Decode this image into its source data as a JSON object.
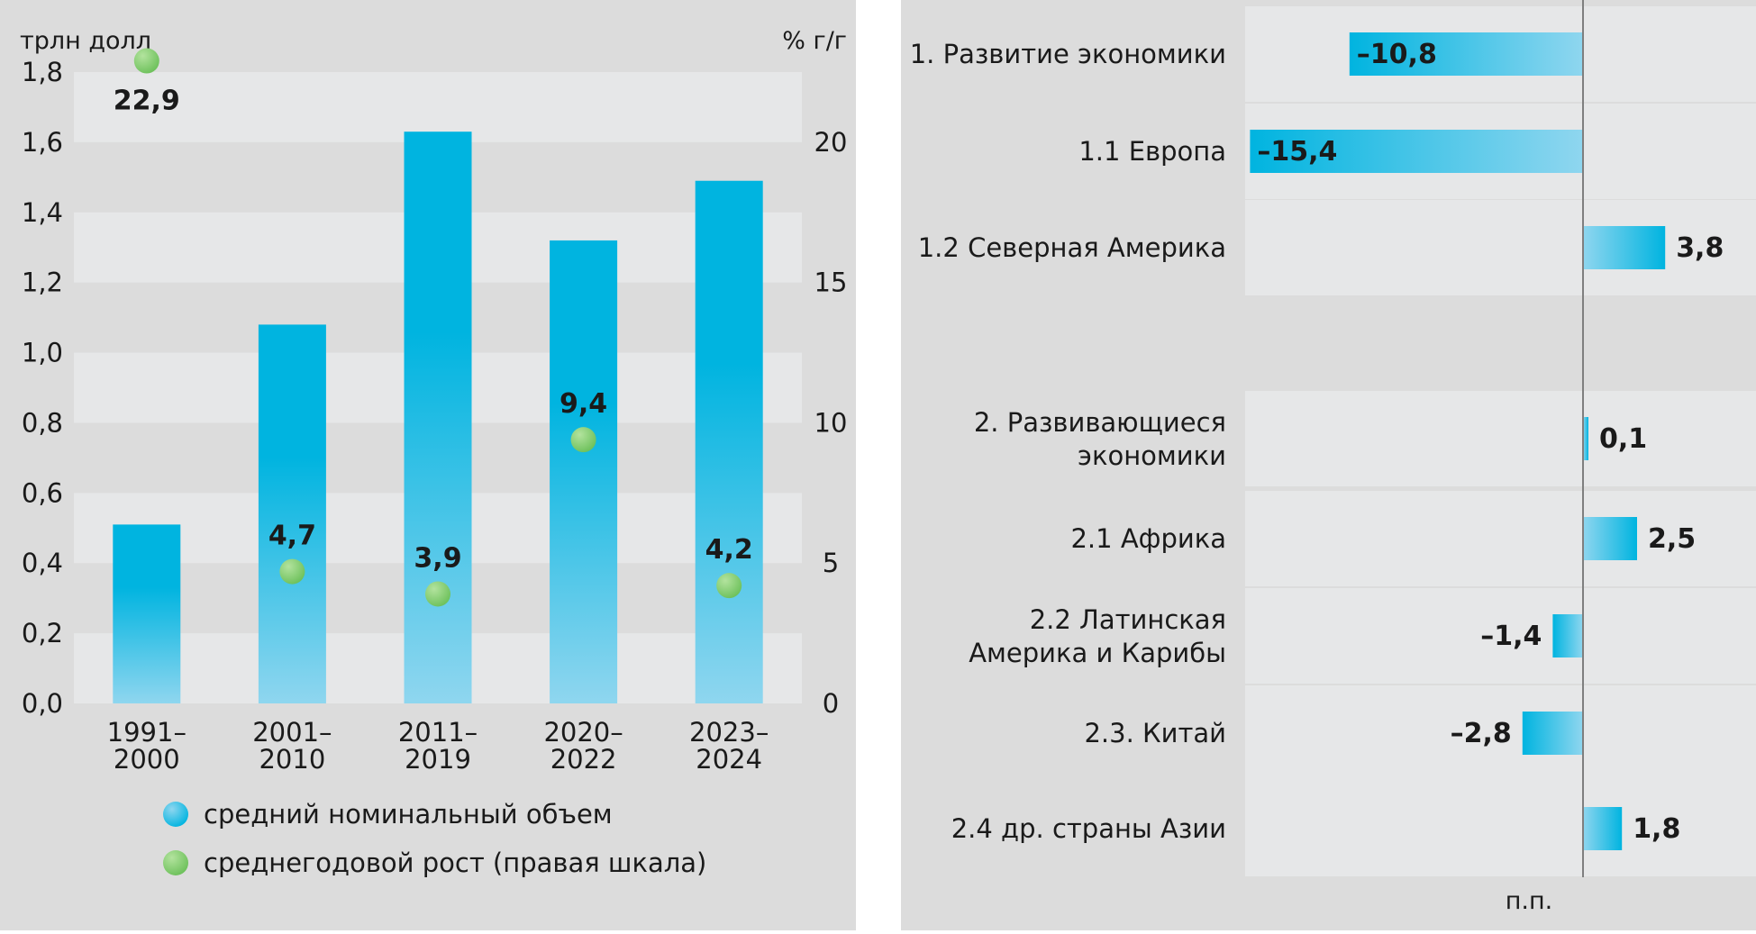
{
  "chart_data": [
    {
      "type": "bar",
      "title": "",
      "ylabel_left": "трлн долл",
      "ylabel_right": "% г/г",
      "ylim_left": [
        0,
        1.8
      ],
      "ylim_right": [
        0,
        22.5
      ],
      "yticks_left": [
        "0,0",
        "0,2",
        "0,4",
        "0,6",
        "0,8",
        "1,0",
        "1,2",
        "1,4",
        "1,6",
        "1,8"
      ],
      "yticks_right": [
        "0",
        "5",
        "10",
        "15",
        "20"
      ],
      "categories": [
        [
          "1991–",
          "2000"
        ],
        [
          "2001–",
          "2010"
        ],
        [
          "2011–",
          "2019"
        ],
        [
          "2020–",
          "2022"
        ],
        [
          "2023–",
          "2024"
        ]
      ],
      "grid": true,
      "legend_position": "bottom",
      "series": [
        {
          "name": "средний номинальный объем",
          "kind": "bar",
          "axis": "left",
          "values": [
            0.51,
            1.08,
            1.63,
            1.32,
            1.49
          ]
        },
        {
          "name": "среднегодовой рост (правая шкала)",
          "kind": "scatter",
          "axis": "right",
          "values": [
            22.9,
            4.7,
            3.9,
            9.4,
            4.2
          ],
          "labels": [
            "22,9",
            "4,7",
            "3,9",
            "9,4",
            "4,2"
          ]
        }
      ],
      "colors": {
        "bar": "#00b4e0",
        "bar_light": "#8fd6ef",
        "dot": "#6cc05a",
        "dot_light": "#b3e39e",
        "band": "#e6e7e8",
        "background": "#dcdcdc"
      }
    },
    {
      "type": "bar",
      "orientation": "horizontal",
      "title": "",
      "xlabel": "п.п.",
      "xlim": [
        -16,
        6
      ],
      "grid": false,
      "categories": [
        [
          "1. Развитие экономики"
        ],
        [
          "1.1 Европа"
        ],
        [
          "1.2 Северная Америка"
        ],
        [
          "2. Развивающиеся",
          "экономики"
        ],
        [
          "2.1 Африка"
        ],
        [
          "2.2 Латинская",
          "Америка и Карибы"
        ],
        [
          "2.3. Китай"
        ],
        [
          "2.4 др. страны Азии"
        ]
      ],
      "values": [
        -10.8,
        -15.4,
        3.8,
        0.1,
        2.5,
        -1.4,
        -2.8,
        1.8
      ],
      "labels": [
        "–10,8",
        "–15,4",
        "3,8",
        "0,1",
        "2,5",
        "–1,4",
        "–2,8",
        "1,8"
      ],
      "colors": {
        "bar": "#00b4e0",
        "bar_light": "#8fd6ef",
        "band": "#e6e7e8",
        "axis": "#7f7f7f"
      }
    }
  ]
}
